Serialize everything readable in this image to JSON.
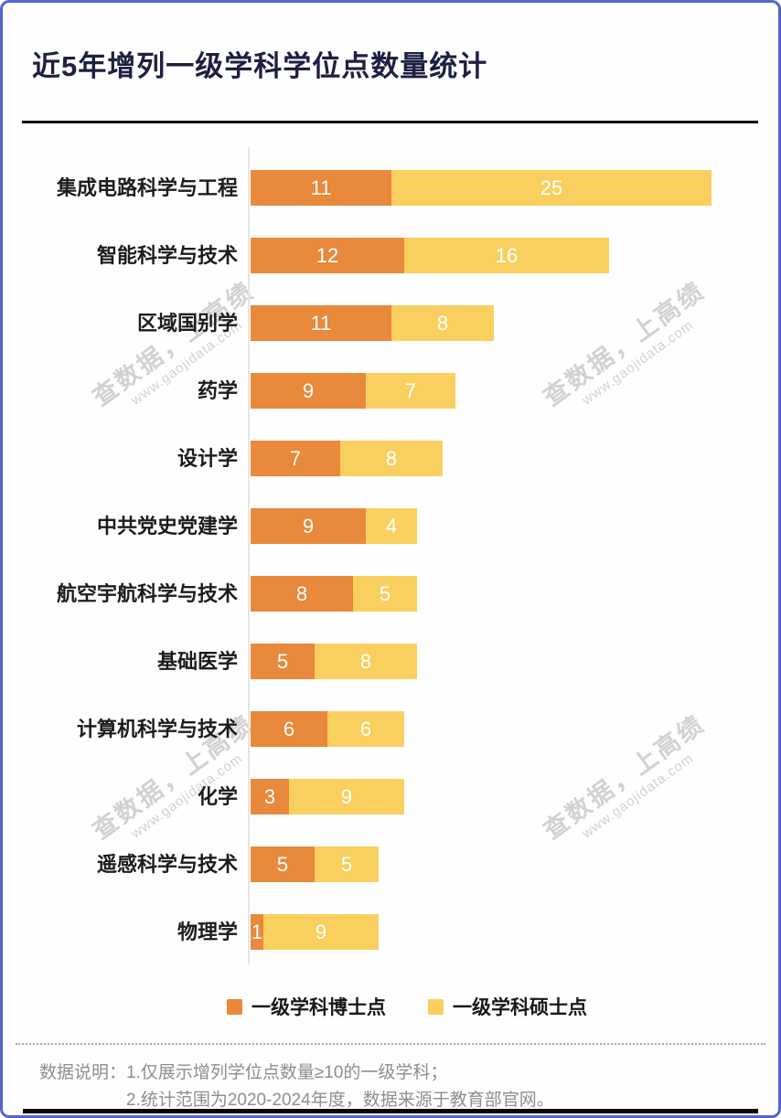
{
  "title": "近5年增列一级学科学位点数量统计",
  "colors": {
    "doctor_orange": "#E8893C",
    "master_yellow": "#F9D05F",
    "border_blue": "#5565CD",
    "title_navy": "#1C2041"
  },
  "chart_data": {
    "type": "bar",
    "orientation": "horizontal",
    "stacked": true,
    "title": "近5年增列一级学科学位点数量统计",
    "categories": [
      "集成电路科学与工程",
      "智能科学与技术",
      "区域国别学",
      "药学",
      "设计学",
      "中共党史党建学",
      "航空宇航科学与技术",
      "基础医学",
      "计算机科学与技术",
      "化学",
      "遥感科学与技术",
      "物理学"
    ],
    "series": [
      {
        "name": "一级学科博士点",
        "color": "#E8893C",
        "values": [
          11,
          12,
          11,
          9,
          7,
          9,
          8,
          5,
          6,
          3,
          5,
          1
        ]
      },
      {
        "name": "一级学科硕士点",
        "color": "#F9D05F",
        "values": [
          25,
          16,
          8,
          7,
          8,
          4,
          5,
          8,
          6,
          9,
          5,
          9
        ]
      }
    ],
    "totals": [
      36,
      28,
      19,
      16,
      15,
      13,
      13,
      13,
      12,
      12,
      10,
      10
    ],
    "value_labels": "inside-white",
    "xlim": [
      0,
      36
    ],
    "grid": false,
    "legend_position": "bottom"
  },
  "watermark": {
    "line1": "查数据，上高绩",
    "line2": "www.gaojidata.com"
  },
  "footer": {
    "prefix": "数据说明：",
    "note1": "1.仅展示增列学位点数量≥10的一级学科；",
    "note2": "2.统计范围为2020-2024年度，数据来源于教育部官网。"
  }
}
